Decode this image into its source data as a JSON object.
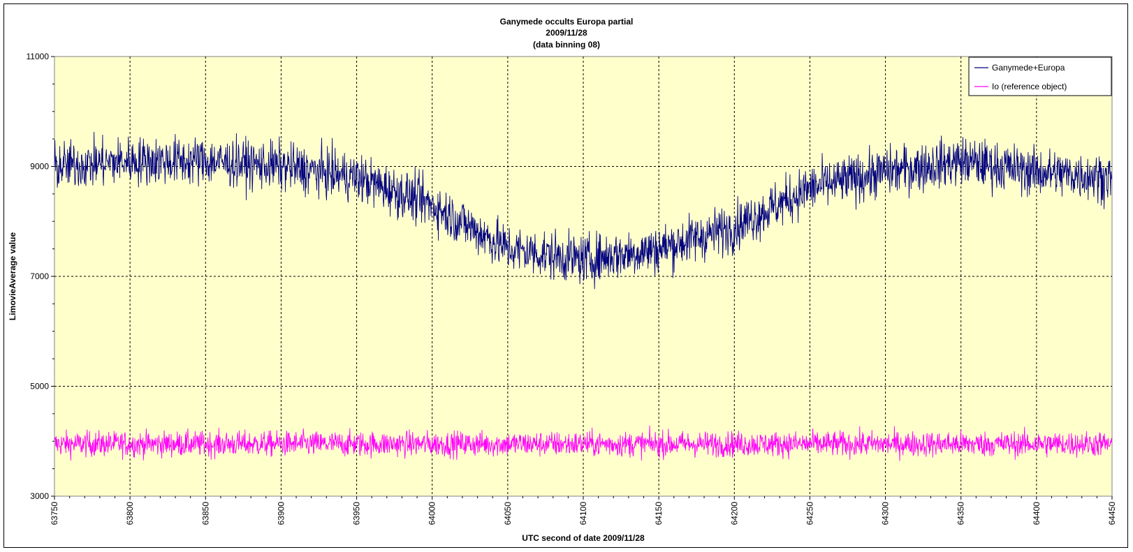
{
  "chart_data": {
    "type": "line",
    "title": [
      "Ganymede occults Europa partial",
      "2009/11/28",
      "(data binning 08)"
    ],
    "xlabel": "UTC second  of date 2009/11/28",
    "ylabel": "LimovieAverage value",
    "xlim": [
      63750,
      64450
    ],
    "ylim": [
      3000,
      11000
    ],
    "x_ticks": [
      63750,
      63800,
      63850,
      63900,
      63950,
      64000,
      64050,
      64100,
      64150,
      64200,
      64250,
      64300,
      64350,
      64400,
      64450
    ],
    "x_tick_labels": [
      "63750",
      "63800",
      "63850",
      "63900",
      "63950",
      "64000",
      "64050",
      "64100",
      "64150",
      "64200",
      "64250",
      "64300",
      "64350",
      "64400",
      "64450"
    ],
    "y_ticks": [
      3000,
      5000,
      7000,
      9000,
      11000
    ],
    "y_tick_labels": [
      "3000",
      "5000",
      "7000",
      "9000",
      "11000"
    ],
    "grid": true,
    "plot_background": "#ffffcc",
    "legend_position": "top-right",
    "series": [
      {
        "name": "Ganymede+Europa",
        "color": "#000080",
        "noise_amplitude": 420,
        "x": [
          63750,
          63800,
          63850,
          63900,
          63950,
          64000,
          64050,
          64100,
          64150,
          64200,
          64250,
          64300,
          64350,
          64400,
          64450
        ],
        "trend": [
          9000,
          9100,
          9100,
          9000,
          8800,
          8300,
          7500,
          7300,
          7500,
          7900,
          8600,
          8900,
          9100,
          8900,
          8800
        ]
      },
      {
        "name": "Io (reference object)",
        "color": "#ff00ff",
        "noise_amplitude": 220,
        "x": [
          63750,
          64450
        ],
        "trend": [
          3950,
          3950
        ]
      }
    ]
  }
}
